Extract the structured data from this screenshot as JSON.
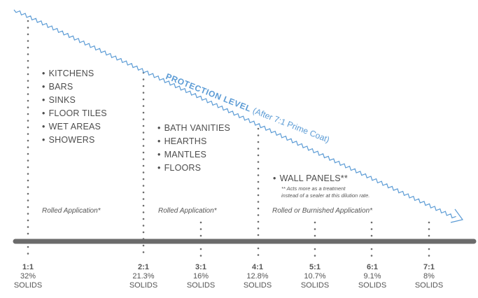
{
  "protection": {
    "title": "PROTECTION LEVEL",
    "subtitle": "(After 7:1 Prime Coat)"
  },
  "groups": [
    {
      "items": [
        "KITCHENS",
        "BARS",
        "SINKS",
        "FLOOR TILES",
        "WET AREAS",
        "SHOWERS"
      ],
      "application": "Rolled Application*"
    },
    {
      "items": [
        "BATH VANITIES",
        "HEARTHS",
        "MANTLES",
        "FLOORS"
      ],
      "application": "Rolled Application*"
    },
    {
      "items": [
        "WALL PANELS**"
      ],
      "application": "Rolled or Burnished Application*",
      "note_line1": "** Acts more as a treatment",
      "note_line2": "instead of a sealer at this dilution rate."
    }
  ],
  "ratios": [
    {
      "ratio": "1:1",
      "percent": "32%",
      "label": "SOLIDS"
    },
    {
      "ratio": "2:1",
      "percent": "21.3%",
      "label": "SOLIDS"
    },
    {
      "ratio": "3:1",
      "percent": "16%",
      "label": "SOLIDS"
    },
    {
      "ratio": "4:1",
      "percent": "12.8%",
      "label": "SOLIDS"
    },
    {
      "ratio": "5:1",
      "percent": "10.7%",
      "label": "SOLIDS"
    },
    {
      "ratio": "6:1",
      "percent": "9.1%",
      "label": "SOLIDS"
    },
    {
      "ratio": "7:1",
      "percent": "8%",
      "label": "SOLIDS"
    }
  ],
  "colors": {
    "arrow": "#5b9bd5",
    "axis": "#6b6b6b",
    "dots": "#6b6b6b",
    "text": "#555555"
  }
}
